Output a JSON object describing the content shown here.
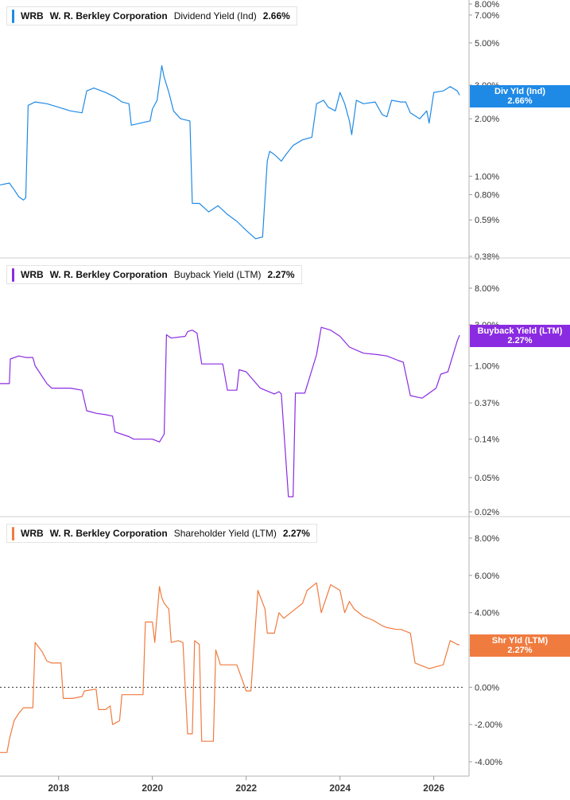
{
  "colors": {
    "div": "#1f8ae6",
    "buyback": "#8a2be2",
    "shareholder": "#f07b3f",
    "grid": "#d0d0d0"
  },
  "panels": [
    {
      "ticker": "WRB",
      "company": "W. R. Berkley Corporation",
      "metric": "Dividend Yield (Ind)",
      "value": "2.66%",
      "tag_label": "Div Yld (Ind)",
      "tag_value": "2.66%"
    },
    {
      "ticker": "WRB",
      "company": "W. R. Berkley Corporation",
      "metric": "Buyback Yield (LTM)",
      "value": "2.27%",
      "tag_label": "Buyback Yield (LTM)",
      "tag_value": "2.27%"
    },
    {
      "ticker": "WRB",
      "company": "W. R. Berkley Corporation",
      "metric": "Shareholder Yield (LTM)",
      "value": "2.27%",
      "tag_label": "Shr Yld (LTM)",
      "tag_value": "2.27%"
    }
  ],
  "chart_data": [
    {
      "type": "line",
      "scale": "log",
      "title": "Dividend Yield (Ind)",
      "yticks": [
        "8.00%",
        "7.00%",
        "5.00%",
        "3.00%",
        "2.00%",
        "1.00%",
        "0.80%",
        "0.59%",
        "0.38%"
      ],
      "ylim": [
        0.38,
        8.0
      ],
      "xlim": [
        2016.75,
        2026.65
      ],
      "x": [
        2016.75,
        2016.95,
        2017.05,
        2017.15,
        2017.25,
        2017.3,
        2017.35,
        2017.5,
        2017.75,
        2018.0,
        2018.25,
        2018.5,
        2018.6,
        2018.75,
        2019.0,
        2019.2,
        2019.35,
        2019.5,
        2019.55,
        2019.75,
        2019.95,
        2020.0,
        2020.1,
        2020.2,
        2020.25,
        2020.35,
        2020.45,
        2020.6,
        2020.8,
        2020.85,
        2021.0,
        2021.2,
        2021.4,
        2021.6,
        2021.8,
        2022.0,
        2022.2,
        2022.35,
        2022.45,
        2022.5,
        2022.6,
        2022.75,
        2022.85,
        2023.0,
        2023.2,
        2023.4,
        2023.5,
        2023.65,
        2023.75,
        2023.9,
        2024.0,
        2024.1,
        2024.2,
        2024.25,
        2024.35,
        2024.5,
        2024.75,
        2024.9,
        2025.0,
        2025.1,
        2025.3,
        2025.4,
        2025.5,
        2025.7,
        2025.85,
        2025.9,
        2026.0,
        2026.2,
        2026.35,
        2026.5,
        2026.55
      ],
      "y": [
        0.9,
        0.92,
        0.85,
        0.78,
        0.75,
        0.77,
        2.35,
        2.45,
        2.4,
        2.3,
        2.2,
        2.15,
        2.8,
        2.9,
        2.75,
        2.6,
        2.45,
        2.4,
        1.85,
        1.9,
        1.95,
        2.25,
        2.5,
        3.8,
        3.3,
        2.75,
        2.2,
        2.0,
        1.95,
        0.72,
        0.72,
        0.65,
        0.7,
        0.63,
        0.58,
        0.52,
        0.47,
        0.48,
        1.2,
        1.35,
        1.3,
        1.2,
        1.3,
        1.45,
        1.55,
        1.6,
        2.4,
        2.5,
        2.3,
        2.2,
        2.75,
        2.4,
        1.95,
        1.65,
        2.5,
        2.4,
        2.45,
        2.1,
        2.05,
        2.5,
        2.45,
        2.45,
        2.15,
        2.0,
        2.2,
        1.9,
        2.75,
        2.8,
        2.95,
        2.8,
        2.66
      ]
    },
    {
      "type": "line",
      "scale": "log",
      "title": "Buyback Yield (LTM)",
      "yticks": [
        "8.00%",
        "3.00%",
        "1.00%",
        "0.37%",
        "0.14%",
        "0.05%",
        "0.02%"
      ],
      "ylim": [
        0.02,
        8.0
      ],
      "xlim": [
        2016.75,
        2026.65
      ],
      "x": [
        2016.75,
        2016.95,
        2016.97,
        2017.15,
        2017.3,
        2017.45,
        2017.5,
        2017.75,
        2017.85,
        2018.05,
        2018.25,
        2018.5,
        2018.6,
        2018.8,
        2019.0,
        2019.15,
        2019.2,
        2019.5,
        2019.6,
        2019.8,
        2020.0,
        2020.15,
        2020.25,
        2020.3,
        2020.4,
        2020.7,
        2020.75,
        2020.85,
        2020.95,
        2021.05,
        2021.2,
        2021.5,
        2021.6,
        2021.8,
        2021.85,
        2022.0,
        2022.3,
        2022.6,
        2022.7,
        2022.75,
        2022.9,
        2023.0,
        2023.05,
        2023.25,
        2023.5,
        2023.6,
        2023.8,
        2024.0,
        2024.2,
        2024.5,
        2024.8,
        2025.0,
        2025.25,
        2025.35,
        2025.5,
        2025.75,
        2026.05,
        2026.15,
        2026.3,
        2026.5,
        2026.55
      ],
      "y": [
        0.62,
        0.62,
        1.2,
        1.3,
        1.25,
        1.25,
        1.0,
        0.62,
        0.55,
        0.55,
        0.55,
        0.52,
        0.3,
        0.28,
        0.27,
        0.26,
        0.17,
        0.15,
        0.14,
        0.14,
        0.14,
        0.13,
        0.16,
        2.3,
        2.1,
        2.2,
        2.5,
        2.6,
        2.4,
        1.05,
        1.05,
        1.05,
        0.52,
        0.52,
        0.9,
        0.85,
        0.55,
        0.47,
        0.5,
        0.47,
        0.03,
        0.03,
        0.48,
        0.48,
        1.35,
        2.8,
        2.6,
        2.2,
        1.65,
        1.4,
        1.35,
        1.3,
        1.15,
        1.1,
        0.45,
        0.42,
        0.55,
        0.8,
        0.85,
        1.95,
        2.27
      ]
    },
    {
      "type": "line",
      "scale": "linear",
      "title": "Shareholder Yield (LTM)",
      "yticks": [
        "8.00%",
        "6.00%",
        "4.00%",
        "2.00%",
        "0.00%",
        "-2.00%",
        "-4.00%"
      ],
      "ylim": [
        -4.0,
        8.0
      ],
      "xlim": [
        2016.75,
        2026.65
      ],
      "x": [
        2016.75,
        2016.9,
        2016.95,
        2017.0,
        2017.05,
        2017.15,
        2017.25,
        2017.35,
        2017.45,
        2017.5,
        2017.65,
        2017.75,
        2017.85,
        2018.05,
        2018.1,
        2018.3,
        2018.5,
        2018.55,
        2018.8,
        2018.85,
        2019.0,
        2019.1,
        2019.15,
        2019.3,
        2019.35,
        2019.6,
        2019.8,
        2019.85,
        2020.0,
        2020.05,
        2020.15,
        2020.2,
        2020.25,
        2020.35,
        2020.4,
        2020.55,
        2020.65,
        2020.75,
        2020.85,
        2020.9,
        2021.0,
        2021.05,
        2021.3,
        2021.35,
        2021.45,
        2021.5,
        2021.8,
        2022.0,
        2022.1,
        2022.25,
        2022.4,
        2022.45,
        2022.6,
        2022.7,
        2022.8,
        2023.0,
        2023.2,
        2023.3,
        2023.5,
        2023.6,
        2023.8,
        2024.0,
        2024.1,
        2024.2,
        2024.3,
        2024.5,
        2024.7,
        2024.9,
        2025.0,
        2025.2,
        2025.3,
        2025.5,
        2025.6,
        2025.9,
        2026.05,
        2026.2,
        2026.35,
        2026.5,
        2026.55
      ],
      "y": [
        -3.5,
        -3.5,
        -2.8,
        -2.3,
        -1.8,
        -1.4,
        -1.1,
        -1.1,
        -1.1,
        2.4,
        1.9,
        1.4,
        1.3,
        1.3,
        -0.6,
        -0.6,
        -0.5,
        -0.2,
        -0.1,
        -1.2,
        -1.2,
        -1.0,
        -2.0,
        -1.8,
        -0.4,
        -0.4,
        -0.4,
        3.5,
        3.5,
        2.4,
        5.4,
        4.8,
        4.5,
        4.2,
        2.4,
        2.5,
        2.4,
        -2.5,
        -2.5,
        2.5,
        2.3,
        -2.9,
        -2.9,
        2.0,
        1.2,
        1.2,
        1.2,
        -0.2,
        -0.2,
        5.2,
        4.2,
        2.9,
        2.9,
        4.0,
        3.7,
        4.1,
        4.5,
        5.2,
        5.6,
        4.0,
        5.5,
        5.2,
        4.0,
        4.6,
        4.2,
        3.8,
        3.6,
        3.3,
        3.2,
        3.1,
        3.1,
        2.9,
        1.3,
        1.0,
        1.1,
        1.2,
        2.5,
        2.3,
        2.27
      ]
    }
  ],
  "xaxis": {
    "ticks": [
      2018,
      2020,
      2022,
      2024,
      2026
    ]
  }
}
